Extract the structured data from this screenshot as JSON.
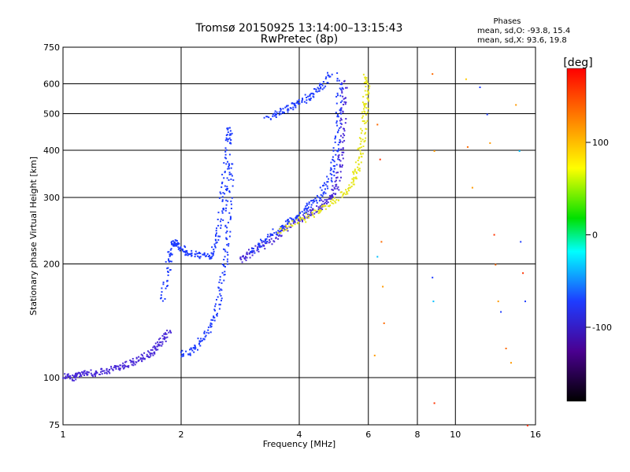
{
  "chart_data": {
    "type": "scatter",
    "title": "Tromsø 20150925 13:14:00–13:15:43",
    "subtitle": "RwPretec (8p)",
    "xlabel": "Frequency [MHz]",
    "ylabel": "Stationary phase Virtual Height [km]",
    "x_scale": "log",
    "y_scale": "log",
    "xlim": [
      1,
      16
    ],
    "ylim": [
      75,
      750
    ],
    "x_ticks": [
      1,
      2,
      4,
      6,
      8,
      10,
      16
    ],
    "y_ticks": [
      75,
      100,
      200,
      300,
      400,
      500,
      600,
      750
    ],
    "grid": true,
    "phases_box": {
      "heading": "Phases",
      "line_o": "mean, sd,O: -93.8, 15.4",
      "line_x": "mean, sd,X:  93.6, 19.8"
    },
    "colorbar": {
      "label": "[deg]",
      "range": [
        -180,
        180
      ],
      "ticks": [
        100,
        0,
        -100
      ],
      "colormap": "rainbow"
    },
    "series": [
      {
        "name": "O",
        "color": "#1e3cff",
        "mean_phase": -93.8,
        "sd": 15.4
      },
      {
        "name": "X",
        "color": "#e6e61e",
        "mean_phase": 93.6,
        "sd": 19.8
      }
    ],
    "traces": [
      {
        "color": "#4a2ad8",
        "points": [
          [
            1.0,
            102
          ],
          [
            1.06,
            100
          ],
          [
            1.12,
            104
          ],
          [
            1.2,
            103
          ],
          [
            1.3,
            105
          ],
          [
            1.4,
            108
          ],
          [
            1.5,
            110
          ],
          [
            1.6,
            114
          ],
          [
            1.7,
            118
          ],
          [
            1.78,
            125
          ],
          [
            1.85,
            135
          ]
        ]
      },
      {
        "color": "#1e3cff",
        "points": [
          [
            1.78,
            160
          ],
          [
            1.85,
            200
          ],
          [
            1.9,
            230
          ],
          [
            1.95,
            225
          ],
          [
            2.05,
            215
          ],
          [
            2.2,
            212
          ],
          [
            2.4,
            210
          ],
          [
            2.5,
            250
          ],
          [
            2.56,
            320
          ],
          [
            2.62,
            420
          ],
          [
            2.66,
            460
          ]
        ]
      },
      {
        "color": "#1e3cff",
        "points": [
          [
            2.0,
            115
          ],
          [
            2.15,
            120
          ],
          [
            2.3,
            130
          ],
          [
            2.45,
            150
          ],
          [
            2.55,
            185
          ],
          [
            2.6,
            230
          ],
          [
            2.64,
            300
          ],
          [
            2.68,
            380
          ]
        ]
      },
      {
        "color": "#4a2ad8",
        "points": [
          [
            2.8,
            205
          ],
          [
            3.0,
            215
          ],
          [
            3.3,
            228
          ],
          [
            3.6,
            245
          ],
          [
            3.9,
            260
          ],
          [
            4.2,
            272
          ],
          [
            4.5,
            285
          ],
          [
            4.8,
            300
          ],
          [
            5.0,
            330
          ],
          [
            5.1,
            400
          ],
          [
            5.15,
            500
          ],
          [
            5.2,
            620
          ]
        ]
      },
      {
        "color": "#1e3cff",
        "points": [
          [
            3.3,
            490
          ],
          [
            3.6,
            510
          ],
          [
            3.9,
            530
          ],
          [
            4.2,
            555
          ],
          [
            4.5,
            590
          ],
          [
            4.8,
            640
          ]
        ]
      },
      {
        "color": "#1e3cff",
        "points": [
          [
            3.0,
            215
          ],
          [
            3.3,
            235
          ],
          [
            3.6,
            252
          ],
          [
            3.9,
            265
          ],
          [
            4.2,
            285
          ],
          [
            4.5,
            305
          ],
          [
            4.8,
            340
          ],
          [
            4.95,
            400
          ],
          [
            5.02,
            500
          ],
          [
            5.05,
            640
          ]
        ]
      },
      {
        "color": "#e6e61e",
        "points": [
          [
            3.5,
            245
          ],
          [
            4.0,
            262
          ],
          [
            4.5,
            280
          ],
          [
            5.0,
            300
          ],
          [
            5.4,
            325
          ],
          [
            5.6,
            360
          ],
          [
            5.75,
            420
          ],
          [
            5.85,
            500
          ],
          [
            5.9,
            560
          ],
          [
            5.92,
            640
          ]
        ]
      }
    ],
    "scatter_points": [
      {
        "x": 6.3,
        "y": 470,
        "color": "#ff6a00"
      },
      {
        "x": 6.4,
        "y": 380,
        "color": "#ff3300"
      },
      {
        "x": 6.45,
        "y": 230,
        "color": "#ff6a00"
      },
      {
        "x": 6.5,
        "y": 175,
        "color": "#ff9a00"
      },
      {
        "x": 6.55,
        "y": 140,
        "color": "#ff6a00"
      },
      {
        "x": 6.3,
        "y": 210,
        "color": "#00bfff"
      },
      {
        "x": 6.2,
        "y": 115,
        "color": "#ff9a00"
      },
      {
        "x": 8.7,
        "y": 640,
        "color": "#ff6a00"
      },
      {
        "x": 8.8,
        "y": 400,
        "color": "#ff9a00"
      },
      {
        "x": 8.7,
        "y": 185,
        "color": "#1e3cff"
      },
      {
        "x": 8.75,
        "y": 160,
        "color": "#00bfff"
      },
      {
        "x": 8.8,
        "y": 86,
        "color": "#ff3300"
      },
      {
        "x": 10.6,
        "y": 620,
        "color": "#ffcc00"
      },
      {
        "x": 10.7,
        "y": 410,
        "color": "#ff6a00"
      },
      {
        "x": 11.0,
        "y": 320,
        "color": "#ff9a00"
      },
      {
        "x": 11.5,
        "y": 590,
        "color": "#1e3cff"
      },
      {
        "x": 12.0,
        "y": 500,
        "color": "#1e3cff"
      },
      {
        "x": 12.2,
        "y": 420,
        "color": "#ff9a00"
      },
      {
        "x": 12.5,
        "y": 240,
        "color": "#ff3300"
      },
      {
        "x": 12.6,
        "y": 200,
        "color": "#ff6a00"
      },
      {
        "x": 12.8,
        "y": 160,
        "color": "#ff9a00"
      },
      {
        "x": 13.0,
        "y": 150,
        "color": "#1e3cff"
      },
      {
        "x": 13.4,
        "y": 120,
        "color": "#ff6a00"
      },
      {
        "x": 13.8,
        "y": 110,
        "color": "#ff9a00"
      },
      {
        "x": 14.2,
        "y": 530,
        "color": "#ff9a00"
      },
      {
        "x": 14.5,
        "y": 400,
        "color": "#00bfff"
      },
      {
        "x": 14.6,
        "y": 230,
        "color": "#1e3cff"
      },
      {
        "x": 14.8,
        "y": 190,
        "color": "#ff3300"
      },
      {
        "x": 15.0,
        "y": 160,
        "color": "#1e3cff"
      },
      {
        "x": 15.2,
        "y": 75,
        "color": "#ff3300"
      }
    ]
  }
}
